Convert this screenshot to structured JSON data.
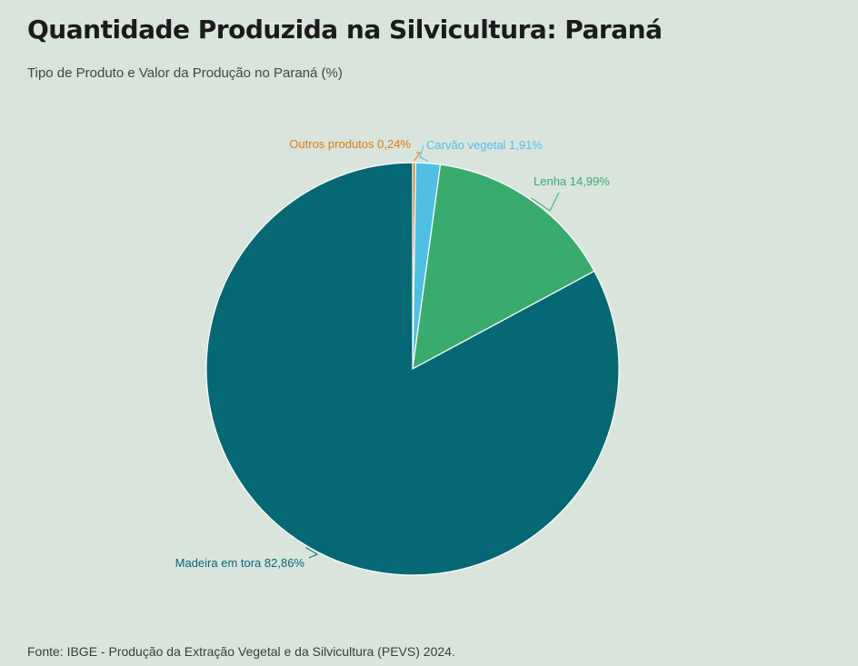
{
  "header": {
    "title": "Quantidade Produzida na Silvicultura: Paraná",
    "subtitle": "Tipo de Produto e Valor da Produção no Paraná (%)"
  },
  "footer": {
    "source": "Fonte: IBGE - Produção da Extração Vegetal e da Silvicultura (PEVS) 2024."
  },
  "chart_data": {
    "type": "pie",
    "unit": "%",
    "slices": [
      {
        "label": "Outros produtos",
        "value": 0.24,
        "display": "Outros produtos 0,24%",
        "color": "#e07b14"
      },
      {
        "label": "Carvão vegetal",
        "value": 1.91,
        "display": "Carvão vegetal 1,91%",
        "color": "#4fc0e3"
      },
      {
        "label": "Lenha",
        "value": 14.99,
        "display": "Lenha 14,99%",
        "color": "#3aab6e"
      },
      {
        "label": "Madeira em tora",
        "value": 82.86,
        "display": "Madeira em tora 82,86%",
        "color": "#056874"
      }
    ]
  }
}
